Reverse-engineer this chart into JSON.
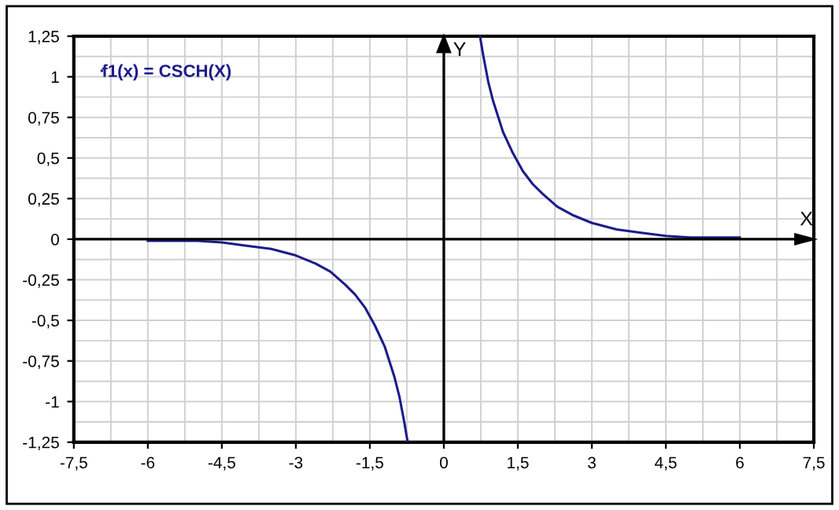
{
  "chart_data": {
    "type": "line",
    "xlabel": "X",
    "ylabel": "Y",
    "series": [
      {
        "name": "f1(x) = CSCH(X)",
        "color": "#1c1c8a",
        "x": [
          -6,
          -5.5,
          -5,
          -4.5,
          -4,
          -3.5,
          -3,
          -2.6,
          -2.3,
          -2,
          -1.8,
          -1.6,
          -1.4,
          -1.2,
          -1,
          -0.9,
          -0.8,
          -0.733,
          0,
          0.733,
          0.8,
          0.9,
          1,
          1.2,
          1.4,
          1.6,
          1.8,
          2,
          2.3,
          2.6,
          3,
          3.5,
          4,
          4.5,
          5,
          5.5,
          6
        ],
        "values": [
          -0.01,
          -0.01,
          -0.01,
          -0.02,
          -0.04,
          -0.06,
          -0.1,
          -0.15,
          -0.2,
          -0.28,
          -0.34,
          -0.42,
          -0.53,
          -0.66,
          -0.85,
          -0.97,
          -1.13,
          -1.25,
          null,
          1.25,
          1.13,
          0.97,
          0.85,
          0.66,
          0.53,
          0.42,
          0.34,
          0.28,
          0.2,
          0.15,
          0.1,
          0.06,
          0.04,
          0.02,
          0.01,
          0.01,
          0.01
        ]
      }
    ],
    "xlim": [
      -7.5,
      7.5
    ],
    "ylim": [
      -1.25,
      1.25
    ],
    "xticks": [
      {
        "value": -7.5,
        "label": "-7,5"
      },
      -6,
      {
        "value": -4.5,
        "label": "-4,5"
      },
      -3,
      {
        "value": -1.5,
        "label": "-1,5"
      },
      0,
      {
        "value": 1.5,
        "label": "1,5"
      },
      3,
      {
        "value": 4.5,
        "label": "4,5"
      },
      6,
      {
        "value": 7.5,
        "label": "7,5"
      }
    ],
    "yticks": [
      {
        "value": -1.25,
        "label": "-1,25"
      },
      -1,
      {
        "value": -0.75,
        "label": "-0,75"
      },
      {
        "value": -0.5,
        "label": "-0,5"
      },
      {
        "value": -0.25,
        "label": "-0,25"
      },
      0,
      {
        "value": 0.25,
        "label": "0,25"
      },
      {
        "value": 0.5,
        "label": "0,5"
      },
      {
        "value": 0.75,
        "label": "0,75"
      },
      1,
      {
        "value": 1.25,
        "label": "1,25"
      }
    ],
    "grid": true,
    "legend": "top left",
    "marker": "none",
    "line_style": "solid"
  }
}
